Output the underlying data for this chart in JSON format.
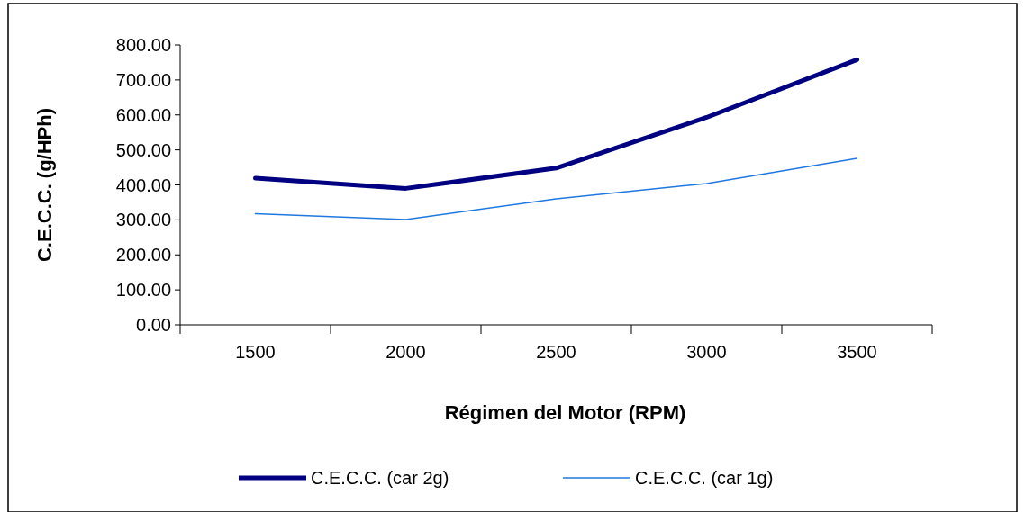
{
  "chart_data": {
    "type": "line",
    "xlabel": "Régimen del Motor (RPM)",
    "ylabel": "C.E.C.C.  (g/HPh)",
    "categories": [
      "1500",
      "2000",
      "2500",
      "3000",
      "3500"
    ],
    "ylim": [
      0,
      800
    ],
    "yticks": [
      {
        "value": 0,
        "label": "0.00"
      },
      {
        "value": 100,
        "label": "100.00"
      },
      {
        "value": 200,
        "label": "200.00"
      },
      {
        "value": 300,
        "label": "300.00"
      },
      {
        "value": 400,
        "label": "400.00"
      },
      {
        "value": 500,
        "label": "500.00"
      },
      {
        "value": 600,
        "label": "600.00"
      },
      {
        "value": 700,
        "label": "700.00"
      },
      {
        "value": 800,
        "label": "800.00"
      }
    ],
    "legend": "bottom",
    "grid": false,
    "series": [
      {
        "name": "C.E.C.C. (car 2g)",
        "color": "#000080",
        "values": [
          419,
          390,
          448,
          593,
          758
        ]
      },
      {
        "name": "C.E.C.C. (car 1g)",
        "color": "#1e78e0",
        "values": [
          318,
          301,
          360,
          404,
          476
        ]
      }
    ]
  }
}
